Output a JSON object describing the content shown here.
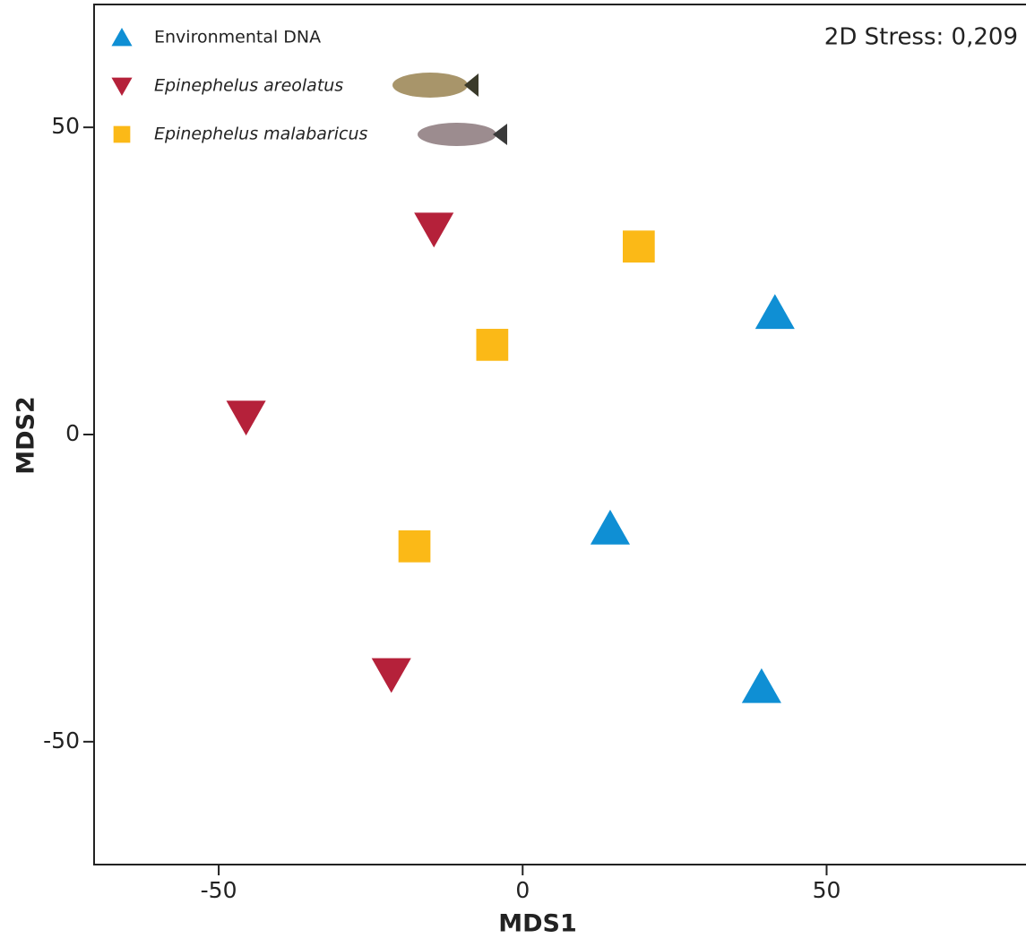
{
  "chart_data": {
    "type": "scatter",
    "annotation": "2D Stress: 0,209",
    "x_label": "MDS1",
    "y_label": "MDS2",
    "xlim": [
      -70.5,
      82.8
    ],
    "ylim": [
      -70,
      70
    ],
    "xticks": [
      -50,
      0,
      50
    ],
    "yticks": [
      -50,
      0,
      50
    ],
    "series": [
      {
        "name": "Environmental DNA",
        "color": "#0f8fd4",
        "marker": "triangle-up",
        "x": [
          41.5,
          14.4,
          39.3
        ],
        "values": [
          19.8,
          -15.3,
          -41.1
        ]
      },
      {
        "name": "Epinephelus areolatus",
        "color": "#b5213a",
        "marker": "triangle-down",
        "x": [
          -14.6,
          -45.5,
          -21.6
        ],
        "values": [
          33.5,
          2.9,
          -39
        ]
      },
      {
        "name": "Epinephelus malabaricus",
        "color": "#fbb917",
        "marker": "square",
        "x": [
          19.1,
          -5,
          -17.8
        ],
        "values": [
          30.6,
          14.6,
          -18.2
        ]
      }
    ]
  }
}
